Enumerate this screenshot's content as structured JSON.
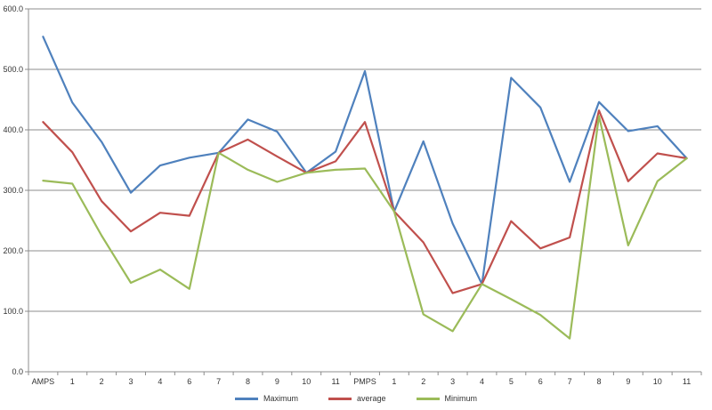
{
  "chart_data": {
    "type": "line",
    "categories": [
      "AMPS",
      "1",
      "2",
      "3",
      "4",
      "6",
      "7",
      "8",
      "9",
      "10",
      "11",
      "PMPS",
      "1",
      "2",
      "3",
      "4",
      "5",
      "6",
      "7",
      "8",
      "9",
      "10",
      "11"
    ],
    "y_ticks": [
      "0.0",
      "100.0",
      "200.0",
      "300.0",
      "400.0",
      "500.0",
      "600.0"
    ],
    "ylim": [
      0,
      600
    ],
    "grid": true,
    "legend_position": "bottom",
    "series": [
      {
        "name": "Maximum",
        "color": "#4f81bd",
        "values": [
          554,
          445,
          380,
          296,
          341,
          354,
          362,
          417,
          397,
          329,
          364,
          497,
          265,
          381,
          245,
          145,
          486,
          437,
          314,
          446,
          398,
          406,
          353
        ]
      },
      {
        "name": "average",
        "color": "#c0504d",
        "values": [
          413,
          363,
          282,
          232,
          263,
          258,
          362,
          384,
          356,
          329,
          348,
          413,
          265,
          214,
          130,
          145,
          249,
          204,
          222,
          432,
          315,
          361,
          353
        ]
      },
      {
        "name": "Minimum",
        "color": "#9bbb59",
        "values": [
          316,
          311,
          225,
          147,
          169,
          137,
          362,
          334,
          314,
          329,
          334,
          336,
          265,
          95,
          67,
          145,
          120,
          94,
          55,
          423,
          209,
          315,
          353
        ]
      }
    ]
  }
}
